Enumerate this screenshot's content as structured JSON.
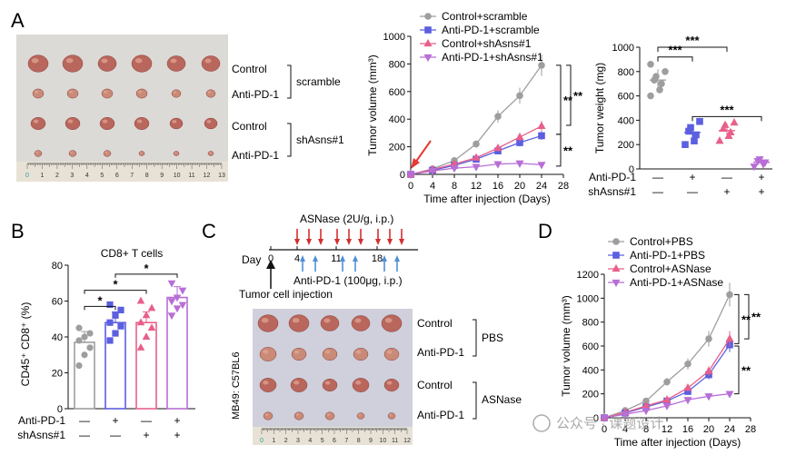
{
  "panel_labels": {
    "A": "A",
    "B": "B",
    "C": "C",
    "D": "D"
  },
  "photo_labels": {
    "a_control": "Control",
    "a_antipd1": "Anti-PD-1",
    "a_control2": "Control",
    "a_antipd1_2": "Anti-PD-1",
    "a_group1": "scramble",
    "a_group2": "shAsns#1",
    "d_control": "Control",
    "d_antipd1": "Anti-PD-1",
    "d_control2": "Control",
    "d_antipd1_2": "Anti-PD-1",
    "d_group1": "PBS",
    "d_group2": "ASNase",
    "model": "MB49: C57BL6"
  },
  "ruler_a": [
    "0",
    "1",
    "2",
    "3",
    "4",
    "5",
    "6",
    "7",
    "8",
    "9",
    "10",
    "11",
    "12",
    "13"
  ],
  "ruler_c": [
    "0",
    "1",
    "2",
    "3",
    "4",
    "5",
    "6",
    "7",
    "8",
    "9",
    "10",
    "11",
    "12"
  ],
  "schedule": {
    "day_label": "Day",
    "ticks": [
      "0",
      "4",
      "11",
      "18"
    ],
    "asnase_label": "ASNase (2U/g, i.p.)",
    "antipd1_label": "Anti-PD-1 (100μg, i.p.)",
    "injection_label": "Tumor cell injection"
  },
  "chart_data": [
    {
      "id": "A-volume",
      "type": "line",
      "xlabel": "Time after injection (Days)",
      "ylabel": "Tumor volume (mm³)",
      "xlim": [
        0,
        28
      ],
      "ylim": [
        0,
        1000
      ],
      "xticks": [
        0,
        4,
        8,
        12,
        16,
        20,
        24,
        28
      ],
      "yticks": [
        0,
        200,
        400,
        600,
        800,
        1000
      ],
      "x": [
        0,
        4,
        8,
        12,
        16,
        20,
        24
      ],
      "series": [
        {
          "name": "Control+scramble",
          "color": "#9e9e9e",
          "marker": "circle",
          "values": [
            0,
            40,
            100,
            220,
            420,
            570,
            790
          ]
        },
        {
          "name": "Anti-PD-1+scramble",
          "color": "#5b5fe0",
          "marker": "square",
          "values": [
            0,
            30,
            65,
            110,
            170,
            230,
            280
          ]
        },
        {
          "name": "Control+shAsns#1",
          "color": "#e8608a",
          "marker": "triangle-up",
          "values": [
            0,
            35,
            75,
            120,
            190,
            270,
            350
          ]
        },
        {
          "name": "Anti-PD-1+shAsns#1",
          "color": "#b86ed6",
          "marker": "triangle-down",
          "values": [
            0,
            25,
            45,
            55,
            75,
            80,
            70
          ]
        }
      ],
      "annotations": [
        "**",
        "**",
        "**"
      ]
    },
    {
      "id": "A-weight",
      "type": "scatter",
      "ylabel": "Tumor weight (mg)",
      "ylim": [
        0,
        1000
      ],
      "yticks": [
        0,
        200,
        400,
        600,
        800,
        1000
      ],
      "groups": [
        {
          "name": "Control+scramble",
          "color": "#9e9e9e",
          "marker": "circle",
          "values": [
            600,
            650,
            700,
            730,
            760,
            800,
            860
          ]
        },
        {
          "name": "Anti-PD-1+scramble",
          "color": "#5b5fe0",
          "marker": "square",
          "values": [
            200,
            230,
            280,
            310,
            340,
            390
          ]
        },
        {
          "name": "Control+shAsns#1",
          "color": "#e8608a",
          "marker": "triangle-up",
          "values": [
            230,
            270,
            300,
            330,
            360,
            380
          ]
        },
        {
          "name": "Anti-PD-1+shAsns#1",
          "color": "#b86ed6",
          "marker": "triangle-down",
          "values": [
            20,
            40,
            55,
            65,
            80
          ]
        }
      ],
      "means": [
        730,
        300,
        315,
        55
      ],
      "row1_label": "Anti-PD-1",
      "row2_label": "shAsns#1",
      "row1": [
        "—",
        "+",
        "—",
        "+"
      ],
      "row2": [
        "—",
        "—",
        "+",
        "+"
      ],
      "annotations": [
        "***",
        "***",
        "***"
      ]
    },
    {
      "id": "B",
      "type": "bar",
      "title": "CD8+ T cells",
      "ylabel": "CD45⁺ CD8⁺ (%)",
      "ylim": [
        0,
        80
      ],
      "yticks": [
        0,
        20,
        40,
        60,
        80
      ],
      "groups": [
        {
          "name": "Control+scramble",
          "color": "#9e9e9e",
          "marker": "circle",
          "mean": 37,
          "points": [
            24,
            30,
            34,
            38,
            40,
            42,
            45
          ]
        },
        {
          "name": "Anti-PD-1+scramble",
          "color": "#5b5fe0",
          "marker": "square",
          "mean": 48,
          "points": [
            38,
            42,
            46,
            48,
            52,
            55,
            58
          ]
        },
        {
          "name": "Control+shAsns#1",
          "color": "#e8608a",
          "marker": "triangle-up",
          "mean": 48,
          "points": [
            34,
            40,
            45,
            48,
            52,
            56,
            60
          ]
        },
        {
          "name": "Anti-PD-1+shAsns#1",
          "color": "#b86ed6",
          "marker": "triangle-down",
          "mean": 62,
          "points": [
            52,
            56,
            58,
            60,
            62,
            66,
            70
          ]
        }
      ],
      "row1_label": "Anti-PD-1",
      "row2_label": "shAsns#1",
      "row1": [
        "—",
        "+",
        "—",
        "+"
      ],
      "row2": [
        "—",
        "—",
        "+",
        "+"
      ],
      "annotations": [
        "*",
        "*",
        "*"
      ]
    },
    {
      "id": "D",
      "type": "line",
      "xlabel": "Time after injection (Days)",
      "ylabel": "Tumor volume (mm³)",
      "xlim": [
        0,
        28
      ],
      "ylim": [
        0,
        1200
      ],
      "xticks": [
        0,
        4,
        8,
        12,
        16,
        20,
        24,
        28
      ],
      "yticks": [
        0,
        200,
        400,
        600,
        800,
        1000,
        1200
      ],
      "x": [
        0,
        4,
        8,
        12,
        16,
        20,
        24
      ],
      "series": [
        {
          "name": "Control+PBS",
          "color": "#9e9e9e",
          "marker": "circle",
          "values": [
            0,
            60,
            140,
            300,
            450,
            660,
            1030
          ]
        },
        {
          "name": "Anti-PD-1+PBS",
          "color": "#5b5fe0",
          "marker": "square",
          "values": [
            0,
            40,
            90,
            140,
            220,
            360,
            610
          ]
        },
        {
          "name": "Control+ASNase",
          "color": "#e8608a",
          "marker": "triangle-up",
          "values": [
            0,
            45,
            100,
            150,
            250,
            390,
            660
          ]
        },
        {
          "name": "Anti-PD-1+ASNase",
          "color": "#b86ed6",
          "marker": "triangle-down",
          "values": [
            0,
            30,
            60,
            100,
            150,
            180,
            200
          ]
        }
      ],
      "annotations": [
        "**",
        "**",
        "**"
      ]
    }
  ],
  "watermark": "公众号 · 课题设计"
}
